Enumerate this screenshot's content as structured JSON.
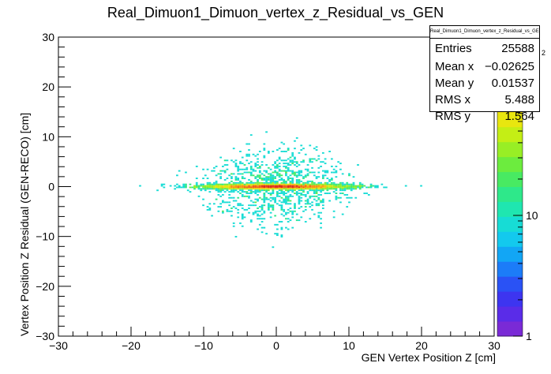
{
  "chart_data": {
    "type": "heatmap",
    "title": "Real_Dimuon1_Dimuon_vertex_z_Residual_vs_GEN",
    "xlabel": "GEN Vertex Position Z [cm]",
    "ylabel": "Vertex Position Z Residual (GEN-RECO) [cm]",
    "xlim": [
      -30,
      30
    ],
    "ylim": [
      -30,
      30
    ],
    "x_ticks": [
      "−30",
      "−20",
      "−10",
      "0",
      "10",
      "20",
      "30"
    ],
    "y_ticks": [
      "−30",
      "−20",
      "−10",
      "0",
      "10",
      "20",
      "30"
    ],
    "z_scale": "log",
    "z_ticks": [
      "1",
      "10"
    ],
    "z_exponent_fragment": "2",
    "grid": false,
    "distribution": {
      "x_mean": -0.02625,
      "y_mean": 0.01537,
      "x_rms": 5.488,
      "y_rms": 1.564,
      "description_core_band_y": [
        -0.5,
        0.5
      ],
      "core_x_extent": [
        -17,
        17
      ]
    },
    "stats": {
      "title": "Real_Dimuon1_Dimuon_vertex_z_Residual_vs_GEN",
      "rows": [
        {
          "label": "Entries",
          "value": "25588"
        },
        {
          "label": "Mean x",
          "value": "−0.02625"
        },
        {
          "label": "Mean y",
          "value": "0.01537"
        },
        {
          "label": "RMS x",
          "value": "5.488"
        },
        {
          "label": "RMS y",
          "value": "1.564"
        }
      ]
    },
    "palette": [
      "#7a2ad6",
      "#5a2ce8",
      "#3d35f0",
      "#2a52f5",
      "#1c7cf8",
      "#12a6f5",
      "#13c9ee",
      "#17dcd5",
      "#1fe6b0",
      "#2ee88a",
      "#48ea62",
      "#6cec3e",
      "#98ee25",
      "#c4ee15",
      "#e8e60f",
      "#f6c40f",
      "#f79412",
      "#f06016",
      "#e0301a",
      "#cc101e"
    ]
  }
}
